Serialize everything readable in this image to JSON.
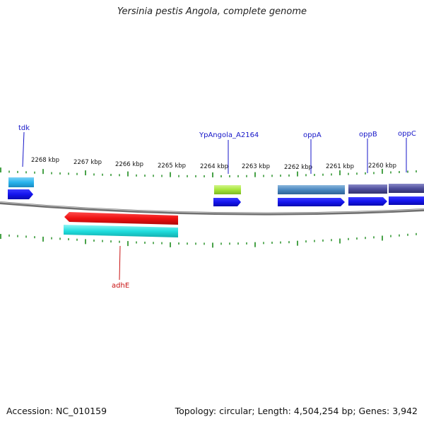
{
  "title": "Yersinia pestis Angola, complete genome",
  "footer": {
    "accession": "Accession: NC_010159",
    "summary": "Topology: circular; Length: 4,504,254 bp; Genes: 3,942"
  },
  "scale_labels": [
    "2268 kbp",
    "2267 kbp",
    "2266 kbp",
    "2265 kbp",
    "2264 kbp",
    "2263 kbp",
    "2262 kbp",
    "2261 kbp",
    "2260 kbp"
  ],
  "genes": {
    "tdk": "tdk",
    "ypangola": "YpAngola_A2164",
    "oppA": "oppA",
    "oppB": "oppB",
    "oppC": "oppC",
    "adhE": "adhE"
  },
  "colors": {
    "forward_label": "#1515c8",
    "reverse_label": "#c81010",
    "tick": "#1a8a1a",
    "backbone": "#8c8c8c",
    "cds": "#1414ee",
    "adhE": "#ee1111",
    "adhE_feature": "#20dede",
    "tdk_feature": "#28b4ee",
    "ypangola_feature": "#a6e63a",
    "oppA_feature": "#4a88c0",
    "oppBC_feature": "#4e4e9c"
  }
}
